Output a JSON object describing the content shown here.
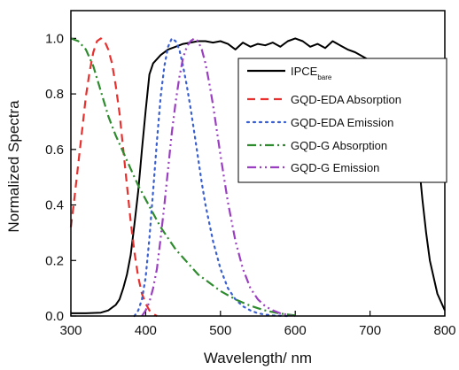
{
  "chart_data": {
    "type": "line",
    "xlabel": "Wavelength/ nm",
    "ylabel": "Normalized Spectra",
    "xlim": [
      300,
      800
    ],
    "ylim": [
      0,
      1.1
    ],
    "xticks": [
      "300",
      "400",
      "500",
      "600",
      "700",
      "800"
    ],
    "yticks": [
      "0.0",
      "0.2",
      "0.4",
      "0.6",
      "0.8",
      "1.0"
    ],
    "grid": false,
    "legend_position": "right",
    "series": [
      {
        "name": "IPCE",
        "name_sub": "bare",
        "color": "#000000",
        "dash": "solid",
        "x": [
          300,
          320,
          340,
          350,
          360,
          365,
          370,
          375,
          380,
          385,
          390,
          395,
          400,
          405,
          410,
          420,
          430,
          440,
          450,
          460,
          470,
          480,
          490,
          500,
          510,
          520,
          530,
          540,
          550,
          560,
          570,
          580,
          590,
          600,
          610,
          620,
          630,
          640,
          650,
          660,
          670,
          680,
          690,
          700,
          710,
          720,
          730,
          740,
          750,
          760,
          765,
          770,
          775,
          780,
          790,
          800
        ],
        "y": [
          0.01,
          0.01,
          0.012,
          0.02,
          0.04,
          0.06,
          0.1,
          0.15,
          0.22,
          0.33,
          0.45,
          0.6,
          0.74,
          0.87,
          0.91,
          0.94,
          0.96,
          0.97,
          0.98,
          0.985,
          0.99,
          0.99,
          0.985,
          0.99,
          0.98,
          0.96,
          0.985,
          0.97,
          0.98,
          0.975,
          0.985,
          0.97,
          0.99,
          1.0,
          0.99,
          0.97,
          0.98,
          0.965,
          0.99,
          0.975,
          0.96,
          0.95,
          0.935,
          0.92,
          0.91,
          0.905,
          0.9,
          0.88,
          0.83,
          0.7,
          0.56,
          0.42,
          0.3,
          0.2,
          0.08,
          0.02
        ]
      },
      {
        "name": "GQD-EDA Absorption",
        "color": "#e8312f",
        "dash": "dash",
        "x": [
          300,
          305,
          310,
          315,
          320,
          325,
          330,
          335,
          340,
          345,
          350,
          355,
          360,
          365,
          370,
          375,
          380,
          385,
          390,
          395,
          400,
          405,
          410,
          415
        ],
        "y": [
          0.32,
          0.43,
          0.55,
          0.67,
          0.79,
          0.88,
          0.95,
          0.99,
          1.0,
          0.99,
          0.96,
          0.91,
          0.83,
          0.73,
          0.6,
          0.47,
          0.34,
          0.23,
          0.14,
          0.08,
          0.045,
          0.02,
          0.008,
          0.0
        ]
      },
      {
        "name": "GQD-EDA Emission",
        "color": "#3a5fd0",
        "dash": "dot",
        "x": [
          385,
          390,
          395,
          400,
          405,
          410,
          415,
          420,
          425,
          430,
          435,
          440,
          445,
          450,
          455,
          460,
          465,
          470,
          475,
          480,
          490,
          500,
          510,
          520,
          530,
          540,
          550,
          560,
          570,
          580,
          590
        ],
        "y": [
          0.0,
          0.02,
          0.06,
          0.14,
          0.28,
          0.45,
          0.63,
          0.79,
          0.9,
          0.97,
          1.0,
          0.99,
          0.96,
          0.9,
          0.83,
          0.75,
          0.66,
          0.57,
          0.48,
          0.4,
          0.27,
          0.17,
          0.1,
          0.06,
          0.035,
          0.02,
          0.01,
          0.005,
          0.002,
          0.001,
          0.0
        ]
      },
      {
        "name": "GQD-G Absorption",
        "color": "#2e8b2e",
        "dash": "dashdot",
        "x": [
          300,
          310,
          320,
          330,
          340,
          350,
          360,
          370,
          380,
          390,
          400,
          410,
          420,
          430,
          440,
          450,
          460,
          470,
          480,
          490,
          500,
          510,
          520,
          530,
          540,
          550,
          560,
          570,
          580,
          590,
          600
        ],
        "y": [
          1.0,
          0.99,
          0.96,
          0.9,
          0.81,
          0.72,
          0.65,
          0.59,
          0.53,
          0.47,
          0.42,
          0.37,
          0.32,
          0.28,
          0.24,
          0.21,
          0.18,
          0.15,
          0.13,
          0.11,
          0.09,
          0.075,
          0.06,
          0.048,
          0.037,
          0.028,
          0.02,
          0.014,
          0.009,
          0.005,
          0.002
        ]
      },
      {
        "name": "GQD-G Emission",
        "color": "#9b3fc1",
        "dash": "dashdotdot",
        "x": [
          395,
          400,
          405,
          410,
          415,
          420,
          425,
          430,
          435,
          440,
          445,
          450,
          455,
          460,
          465,
          470,
          475,
          480,
          485,
          490,
          495,
          500,
          510,
          520,
          530,
          540,
          550,
          560,
          570,
          580,
          590,
          600
        ],
        "y": [
          0.0,
          0.02,
          0.05,
          0.1,
          0.17,
          0.28,
          0.4,
          0.53,
          0.66,
          0.77,
          0.86,
          0.93,
          0.97,
          0.99,
          1.0,
          0.99,
          0.96,
          0.91,
          0.84,
          0.76,
          0.67,
          0.58,
          0.41,
          0.27,
          0.17,
          0.1,
          0.06,
          0.035,
          0.02,
          0.01,
          0.004,
          0.0
        ]
      }
    ]
  }
}
